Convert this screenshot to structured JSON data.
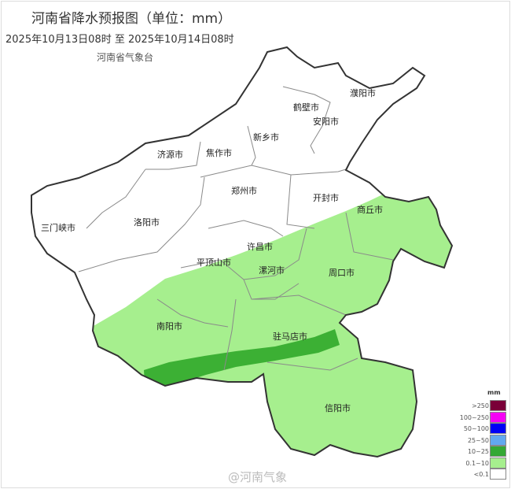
{
  "header": {
    "title": "河南省降水预报图（单位：mm）",
    "period": "2025年10月13日08时  至  2025年10月14日08时",
    "issuer": "河南省气象台"
  },
  "map": {
    "cities": [
      "三门峡市",
      "洛阳市",
      "济源市",
      "焦作市",
      "新乡市",
      "鹤壁市",
      "安阳市",
      "濮阳市",
      "郑州市",
      "开封市",
      "商丘市",
      "许昌市",
      "平顶山市",
      "漯河市",
      "周口市",
      "南阳市",
      "驻马店市",
      "信阳市"
    ],
    "rain_colors": {
      "light": "#a6ef8e",
      "moderate": "#3cb034"
    }
  },
  "legend": {
    "unit": "mm",
    "items": [
      {
        "label": ">250",
        "color": "#7a0038"
      },
      {
        "label": "100~250",
        "color": "#f500f5"
      },
      {
        "label": "50~100",
        "color": "#0000f5"
      },
      {
        "label": "25~50",
        "color": "#62a8f0"
      },
      {
        "label": "10~25",
        "color": "#34a834"
      },
      {
        "label": "0.1~10",
        "color": "#a6ef8e"
      },
      {
        "label": "<0.1",
        "color": "#ffffff"
      }
    ]
  },
  "watermark": "@河南气象"
}
